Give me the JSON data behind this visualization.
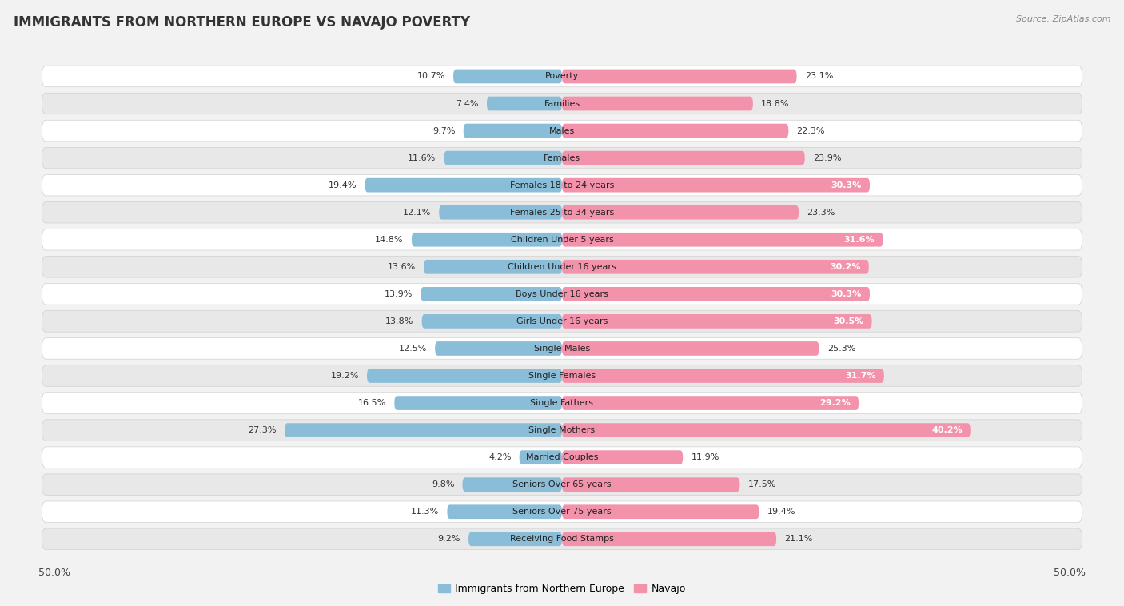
{
  "title": "IMMIGRANTS FROM NORTHERN EUROPE VS NAVAJO POVERTY",
  "source": "Source: ZipAtlas.com",
  "categories": [
    "Poverty",
    "Families",
    "Males",
    "Females",
    "Females 18 to 24 years",
    "Females 25 to 34 years",
    "Children Under 5 years",
    "Children Under 16 years",
    "Boys Under 16 years",
    "Girls Under 16 years",
    "Single Males",
    "Single Females",
    "Single Fathers",
    "Single Mothers",
    "Married Couples",
    "Seniors Over 65 years",
    "Seniors Over 75 years",
    "Receiving Food Stamps"
  ],
  "left_values": [
    10.7,
    7.4,
    9.7,
    11.6,
    19.4,
    12.1,
    14.8,
    13.6,
    13.9,
    13.8,
    12.5,
    19.2,
    16.5,
    27.3,
    4.2,
    9.8,
    11.3,
    9.2
  ],
  "right_values": [
    23.1,
    18.8,
    22.3,
    23.9,
    30.3,
    23.3,
    31.6,
    30.2,
    30.3,
    30.5,
    25.3,
    31.7,
    29.2,
    40.2,
    11.9,
    17.5,
    19.4,
    21.1
  ],
  "left_color": "#89bdd8",
  "right_color": "#f392ab",
  "axis_max": 50.0,
  "legend_left": "Immigrants from Northern Europe",
  "legend_right": "Navajo",
  "background_color": "#f2f2f2",
  "row_light": "#ffffff",
  "row_dark": "#e8e8e8",
  "bar_height": 0.52,
  "label_fontsize": 8.0,
  "value_fontsize": 8.0,
  "title_fontsize": 12,
  "source_fontsize": 8
}
